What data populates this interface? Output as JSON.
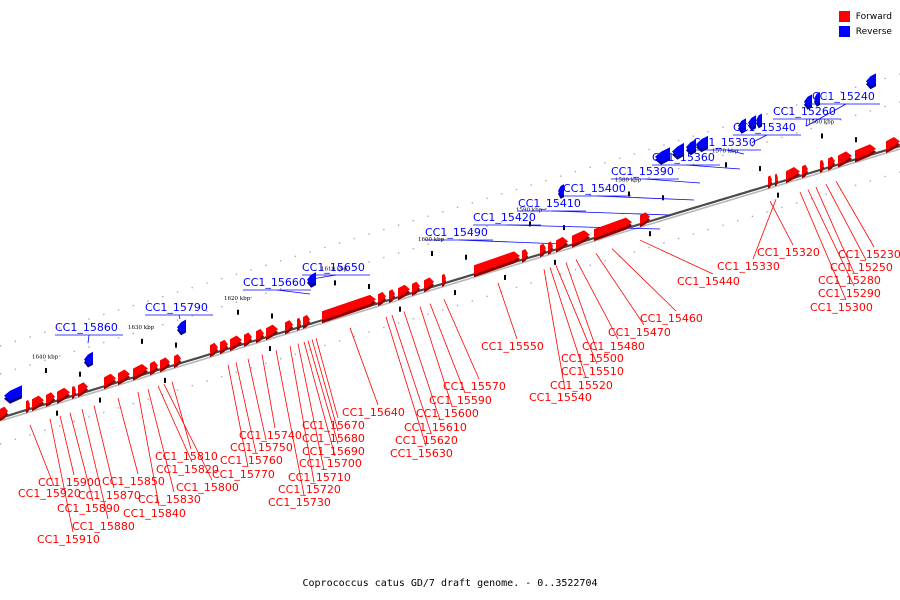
{
  "caption": "Coprococcus catus GD/7 draft genome. - 0..3522704",
  "legend": [
    {
      "label": "Forward",
      "color": "#ff0000"
    },
    {
      "label": "Reverse",
      "color": "#0000ff"
    }
  ],
  "colors": {
    "forward": "#ff0000",
    "reverse": "#0000ff"
  },
  "scale_labels": [
    "1560 kbp",
    "1570 kbp",
    "1580 kbp",
    "1590 kbp",
    "1600 kbp",
    "1610 kbp",
    "1620 kbp",
    "1630 kbp",
    "1640 kbp"
  ],
  "reverse_labels": [
    "CC1_15240",
    "CC1_15260",
    "CC1_15340",
    "CC1_15350",
    "CC1_15360",
    "CC1_15390",
    "CC1_15400",
    "CC1_15410",
    "CC1_15420",
    "CC1_15490",
    "CC1_15650",
    "CC1_15660",
    "CC1_15790",
    "CC1_15860"
  ],
  "forward_labels": [
    "CC1_15230",
    "CC1_15250",
    "CC1_15280",
    "CC1_15290",
    "CC1_15300",
    "CC1_15320",
    "CC1_15330",
    "CC1_15440",
    "CC1_15460",
    "CC1_15470",
    "CC1_15480",
    "CC1_15500",
    "CC1_15510",
    "CC1_15520",
    "CC1_15540",
    "CC1_15550",
    "CC1_15570",
    "CC1_15590",
    "CC1_15600",
    "CC1_15610",
    "CC1_15620",
    "CC1_15630",
    "CC1_15640",
    "CC1_15670",
    "CC1_15680",
    "CC1_15690",
    "CC1_15700",
    "CC1_15710",
    "CC1_15720",
    "CC1_15730",
    "CC1_15740",
    "CC1_15750",
    "CC1_15760",
    "CC1_15770",
    "CC1_15800",
    "CC1_15810",
    "CC1_15820",
    "CC1_15830",
    "CC1_15840",
    "CC1_15850",
    "CC1_15870",
    "CC1_15880",
    "CC1_15890",
    "CC1_15900",
    "CC1_15910",
    "CC1_15920"
  ]
}
